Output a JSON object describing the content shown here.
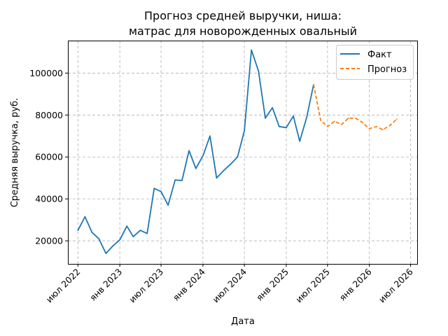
{
  "chart_data": {
    "type": "line",
    "title_lines": [
      "Прогноз средней выручки, ниша:",
      "матрас для новорожденных овальный"
    ],
    "xlabel": "Дата",
    "ylabel": "Средняя выручка, руб.",
    "x_ticks": [
      {
        "date": "2022-07-01",
        "label": "июл 2022"
      },
      {
        "date": "2023-01-01",
        "label": "янв 2023"
      },
      {
        "date": "2023-07-01",
        "label": "июл 2023"
      },
      {
        "date": "2024-01-01",
        "label": "янв 2024"
      },
      {
        "date": "2024-07-01",
        "label": "июл 2024"
      },
      {
        "date": "2025-01-01",
        "label": "янв 2025"
      },
      {
        "date": "2025-07-01",
        "label": "июл 2025"
      },
      {
        "date": "2026-01-01",
        "label": "янв 2026"
      },
      {
        "date": "2026-07-01",
        "label": "июл 2026"
      }
    ],
    "y_ticks": [
      20000,
      40000,
      60000,
      80000,
      100000
    ],
    "xlim": [
      "2022-05-18",
      "2026-07-30"
    ],
    "ylim": [
      9000,
      115500
    ],
    "grid": true,
    "legend_position": "top-right",
    "series": [
      {
        "name": "Факт",
        "color": "#1f77b4",
        "style": "solid",
        "points": [
          [
            "2022-07-01",
            25000
          ],
          [
            "2022-08-01",
            31500
          ],
          [
            "2022-09-01",
            24000
          ],
          [
            "2022-10-01",
            21000
          ],
          [
            "2022-11-01",
            14000
          ],
          [
            "2022-12-01",
            17500
          ],
          [
            "2023-01-01",
            20500
          ],
          [
            "2023-02-01",
            27000
          ],
          [
            "2023-03-01",
            22000
          ],
          [
            "2023-04-01",
            25000
          ],
          [
            "2023-05-01",
            23500
          ],
          [
            "2023-06-01",
            45000
          ],
          [
            "2023-07-01",
            43500
          ],
          [
            "2023-08-01",
            37000
          ],
          [
            "2023-09-01",
            49000
          ],
          [
            "2023-10-01",
            48800
          ],
          [
            "2023-11-01",
            63000
          ],
          [
            "2023-12-01",
            54500
          ],
          [
            "2024-01-01",
            60500
          ],
          [
            "2024-02-01",
            70000
          ],
          [
            "2024-03-01",
            50000
          ],
          [
            "2024-04-01",
            53500
          ],
          [
            "2024-05-01",
            56500
          ],
          [
            "2024-06-01",
            60000
          ],
          [
            "2024-07-01",
            72500
          ],
          [
            "2024-08-01",
            111000
          ],
          [
            "2024-09-01",
            101000
          ],
          [
            "2024-10-01",
            78500
          ],
          [
            "2024-11-01",
            83500
          ],
          [
            "2024-12-01",
            74500
          ],
          [
            "2025-01-01",
            74000
          ],
          [
            "2025-02-01",
            79500
          ],
          [
            "2025-03-01",
            67500
          ],
          [
            "2025-04-01",
            79000
          ],
          [
            "2025-05-01",
            94500
          ]
        ]
      },
      {
        "name": "Прогноз",
        "color": "#ff7f0e",
        "style": "dashed",
        "points": [
          [
            "2025-05-01",
            94500
          ],
          [
            "2025-06-01",
            77500
          ],
          [
            "2025-07-01",
            74500
          ],
          [
            "2025-08-01",
            77000
          ],
          [
            "2025-09-01",
            75500
          ],
          [
            "2025-10-01",
            78500
          ],
          [
            "2025-11-01",
            78500
          ],
          [
            "2025-12-01",
            76500
          ],
          [
            "2026-01-01",
            73500
          ],
          [
            "2026-02-01",
            74500
          ],
          [
            "2026-03-01",
            73000
          ],
          [
            "2026-04-01",
            75000
          ],
          [
            "2026-05-01",
            78000
          ]
        ]
      }
    ]
  }
}
